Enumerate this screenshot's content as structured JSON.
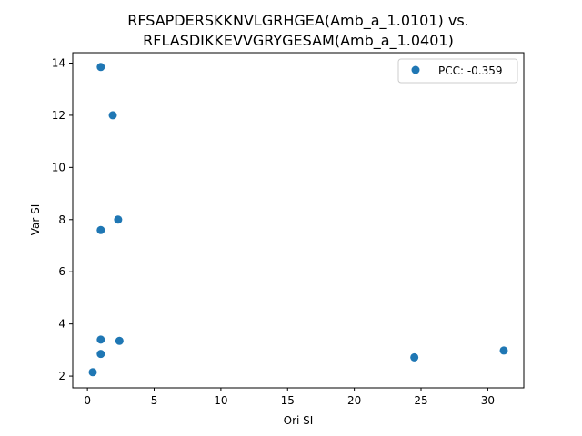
{
  "chart_data": {
    "type": "scatter",
    "title_lines": [
      "RFSAPDERSKKNVLGRHGEA(Amb_a_1.0101) vs.",
      "RFLASDIKKEVVGRYGESAM(Amb_a_1.0401)"
    ],
    "xlabel": "Ori SI",
    "ylabel": "Var SI",
    "xlim": [
      -1.1,
      32.7
    ],
    "ylim": [
      1.55,
      14.4
    ],
    "xticks": [
      0,
      5,
      10,
      15,
      20,
      25,
      30
    ],
    "yticks": [
      2,
      4,
      6,
      8,
      10,
      12,
      14
    ],
    "grid": false,
    "legend_position": "top-right",
    "series": [
      {
        "name": "PCC: -0.359",
        "color": "#1f77b4",
        "x": [
          1.0,
          1.9,
          2.3,
          1.0,
          1.0,
          2.4,
          1.0,
          0.4,
          24.5,
          31.2
        ],
        "y": [
          13.85,
          12.0,
          8.0,
          7.6,
          3.4,
          3.35,
          2.85,
          2.15,
          2.72,
          2.98
        ]
      }
    ]
  }
}
